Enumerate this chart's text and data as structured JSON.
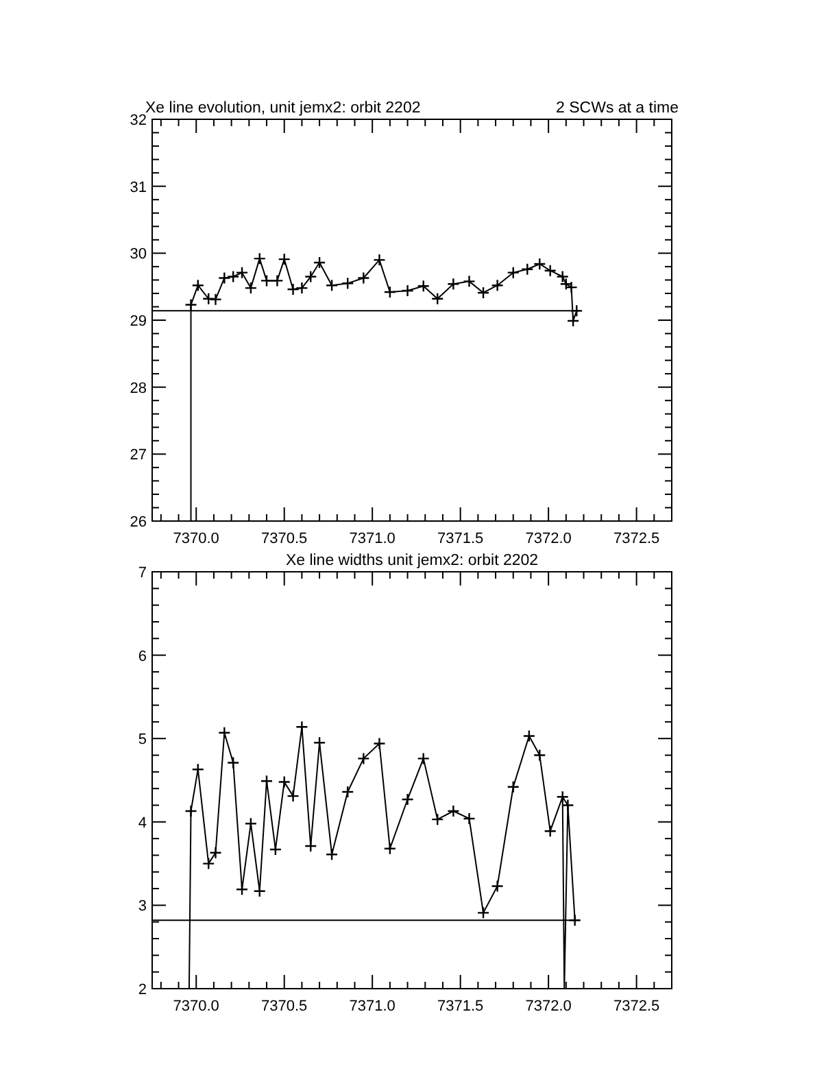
{
  "chart_data": [
    {
      "type": "line",
      "title": "Xe line evolution, unit jemx2: orbit 2202",
      "annotations": [
        "2 SCWs at a time"
      ],
      "marker": "cross",
      "xlim": [
        7369.75,
        7372.7
      ],
      "ylim": [
        26,
        32
      ],
      "xticks": [
        {
          "value": 7369.8,
          "label": null
        },
        {
          "value": 7369.9,
          "label": null
        },
        {
          "value": 7370,
          "label": "7370.0"
        },
        {
          "value": 7370.1,
          "label": null
        },
        {
          "value": 7370.2,
          "label": null
        },
        {
          "value": 7370.3,
          "label": null
        },
        {
          "value": 7370.4,
          "label": null
        },
        {
          "value": 7370.5,
          "label": "7370.5"
        },
        {
          "value": 7370.6,
          "label": null
        },
        {
          "value": 7370.7,
          "label": null
        },
        {
          "value": 7370.8,
          "label": null
        },
        {
          "value": 7370.9,
          "label": null
        },
        {
          "value": 7371,
          "label": "7371.0"
        },
        {
          "value": 7371.1,
          "label": null
        },
        {
          "value": 7371.2,
          "label": null
        },
        {
          "value": 7371.3,
          "label": null
        },
        {
          "value": 7371.4,
          "label": null
        },
        {
          "value": 7371.5,
          "label": "7371.5"
        },
        {
          "value": 7371.6,
          "label": null
        },
        {
          "value": 7371.7,
          "label": null
        },
        {
          "value": 7371.8,
          "label": null
        },
        {
          "value": 7371.9,
          "label": null
        },
        {
          "value": 7372,
          "label": "7372.0"
        },
        {
          "value": 7372.1,
          "label": null
        },
        {
          "value": 7372.2,
          "label": null
        },
        {
          "value": 7372.3,
          "label": null
        },
        {
          "value": 7372.4,
          "label": null
        },
        {
          "value": 7372.5,
          "label": "7372.5"
        },
        {
          "value": 7372.6,
          "label": null
        }
      ],
      "yticks": [
        26,
        {
          "value": 26.2,
          "label": null
        },
        {
          "value": 26.4,
          "label": null
        },
        {
          "value": 26.6,
          "label": null
        },
        {
          "value": 26.8,
          "label": null
        },
        27,
        {
          "value": 27.2,
          "label": null
        },
        {
          "value": 27.4,
          "label": null
        },
        {
          "value": 27.6,
          "label": null
        },
        {
          "value": 27.8,
          "label": null
        },
        28,
        {
          "value": 28.2,
          "label": null
        },
        {
          "value": 28.4,
          "label": null
        },
        {
          "value": 28.6,
          "label": null
        },
        {
          "value": 28.8,
          "label": null
        },
        29,
        {
          "value": 29.2,
          "label": null
        },
        {
          "value": 29.4,
          "label": null
        },
        {
          "value": 29.6,
          "label": null
        },
        {
          "value": 29.8,
          "label": null
        },
        30,
        {
          "value": 30.2,
          "label": null
        },
        {
          "value": 30.4,
          "label": null
        },
        {
          "value": 30.6,
          "label": null
        },
        {
          "value": 30.8,
          "label": null
        },
        31,
        {
          "value": 31.2,
          "label": null
        },
        {
          "value": 31.4,
          "label": null
        },
        {
          "value": 31.6,
          "label": null
        },
        {
          "value": 31.8,
          "label": null
        },
        32
      ],
      "series": [
        {
          "color": "#000000",
          "x": [
            7369.97,
            7370.01,
            7370.07,
            7370.11,
            7370.16,
            7370.21,
            7370.26,
            7370.31,
            7370.36,
            7370.4,
            7370.46,
            7370.5,
            7370.55,
            7370.6,
            7370.65,
            7370.7,
            7370.77,
            7370.86,
            7370.95,
            7371.04,
            7371.1,
            7371.2,
            7371.29,
            7371.37,
            7371.46,
            7371.55,
            7371.63,
            7371.71,
            7371.8,
            7371.88,
            7371.95,
            7372.01,
            7372.08,
            7372.1,
            7372.13,
            7372.14,
            7372.16
          ],
          "values": [
            29.23,
            29.52,
            29.32,
            29.31,
            29.63,
            29.65,
            29.71,
            29.48,
            29.92,
            29.59,
            29.59,
            29.91,
            29.46,
            29.48,
            29.65,
            29.86,
            29.52,
            29.55,
            29.63,
            29.9,
            29.42,
            29.44,
            29.51,
            29.32,
            29.54,
            29.58,
            29.41,
            29.52,
            29.71,
            29.76,
            29.84,
            29.74,
            29.65,
            29.54,
            29.49,
            28.99,
            29.14
          ]
        },
        {
          "color": "#000000",
          "marker": "none",
          "x": [
            7369.97,
            7369.97
          ],
          "values": [
            26,
            29.23
          ]
        },
        {
          "color": "#000000",
          "marker": "none",
          "x": [
            7369.75,
            7372.18
          ],
          "values": [
            29.14,
            29.14
          ]
        }
      ]
    },
    {
      "type": "line",
      "title": "Xe line widths unit jemx2: orbit 2202",
      "marker": "cross",
      "xlim": [
        7369.75,
        7372.7
      ],
      "ylim": [
        2,
        7
      ],
      "xticks": [
        {
          "value": 7369.8,
          "label": null
        },
        {
          "value": 7369.9,
          "label": null
        },
        {
          "value": 7370,
          "label": "7370.0"
        },
        {
          "value": 7370.1,
          "label": null
        },
        {
          "value": 7370.2,
          "label": null
        },
        {
          "value": 7370.3,
          "label": null
        },
        {
          "value": 7370.4,
          "label": null
        },
        {
          "value": 7370.5,
          "label": "7370.5"
        },
        {
          "value": 7370.6,
          "label": null
        },
        {
          "value": 7370.7,
          "label": null
        },
        {
          "value": 7370.8,
          "label": null
        },
        {
          "value": 7370.9,
          "label": null
        },
        {
          "value": 7371,
          "label": "7371.0"
        },
        {
          "value": 7371.1,
          "label": null
        },
        {
          "value": 7371.2,
          "label": null
        },
        {
          "value": 7371.3,
          "label": null
        },
        {
          "value": 7371.4,
          "label": null
        },
        {
          "value": 7371.5,
          "label": "7371.5"
        },
        {
          "value": 7371.6,
          "label": null
        },
        {
          "value": 7371.7,
          "label": null
        },
        {
          "value": 7371.8,
          "label": null
        },
        {
          "value": 7371.9,
          "label": null
        },
        {
          "value": 7372,
          "label": "7372.0"
        },
        {
          "value": 7372.1,
          "label": null
        },
        {
          "value": 7372.2,
          "label": null
        },
        {
          "value": 7372.3,
          "label": null
        },
        {
          "value": 7372.4,
          "label": null
        },
        {
          "value": 7372.5,
          "label": "7372.5"
        },
        {
          "value": 7372.6,
          "label": null
        }
      ],
      "yticks": [
        2,
        {
          "value": 2.2,
          "label": null
        },
        {
          "value": 2.4,
          "label": null
        },
        {
          "value": 2.6,
          "label": null
        },
        {
          "value": 2.8,
          "label": null
        },
        3,
        {
          "value": 3.2,
          "label": null
        },
        {
          "value": 3.4,
          "label": null
        },
        {
          "value": 3.6,
          "label": null
        },
        {
          "value": 3.8,
          "label": null
        },
        4,
        {
          "value": 4.2,
          "label": null
        },
        {
          "value": 4.4,
          "label": null
        },
        {
          "value": 4.6,
          "label": null
        },
        {
          "value": 4.8,
          "label": null
        },
        5,
        {
          "value": 5.2,
          "label": null
        },
        {
          "value": 5.4,
          "label": null
        },
        {
          "value": 5.6,
          "label": null
        },
        {
          "value": 5.8,
          "label": null
        },
        6,
        {
          "value": 6.2,
          "label": null
        },
        {
          "value": 6.4,
          "label": null
        },
        {
          "value": 6.6,
          "label": null
        },
        {
          "value": 6.8,
          "label": null
        },
        7
      ],
      "series": [
        {
          "color": "#000000",
          "x": [
            7369.97,
            7370.01,
            7370.07,
            7370.11,
            7370.16,
            7370.21,
            7370.26,
            7370.31,
            7370.36,
            7370.4,
            7370.45,
            7370.5,
            7370.55,
            7370.6,
            7370.65,
            7370.7,
            7370.77,
            7370.86,
            7370.95,
            7371.04,
            7371.1,
            7371.2,
            7371.29,
            7371.37,
            7371.46,
            7371.55,
            7371.63,
            7371.71,
            7371.8,
            7371.89,
            7371.95,
            7372.01,
            7372.08,
            7372.11,
            7372.15
          ],
          "values": [
            4.13,
            4.63,
            3.5,
            3.63,
            5.07,
            4.71,
            3.19,
            3.98,
            3.17,
            4.49,
            3.67,
            4.48,
            4.31,
            5.14,
            3.71,
            4.95,
            3.61,
            4.36,
            4.76,
            4.94,
            3.68,
            4.27,
            4.76,
            4.03,
            4.13,
            4.04,
            2.91,
            3.23,
            4.42,
            5.03,
            4.8,
            3.89,
            4.3,
            4.2,
            2.82
          ]
        },
        {
          "color": "#000000",
          "marker": "none",
          "x": [
            7369.96,
            7369.97
          ],
          "values": [
            2,
            4.13
          ]
        },
        {
          "color": "#000000",
          "marker": "none",
          "x": [
            7372.08,
            7372.09,
            7372.11
          ],
          "values": [
            4.3,
            2,
            4.2
          ]
        },
        {
          "color": "#000000",
          "marker": "none",
          "x": [
            7369.75,
            7372.18
          ],
          "values": [
            2.82,
            2.82
          ]
        }
      ]
    }
  ]
}
